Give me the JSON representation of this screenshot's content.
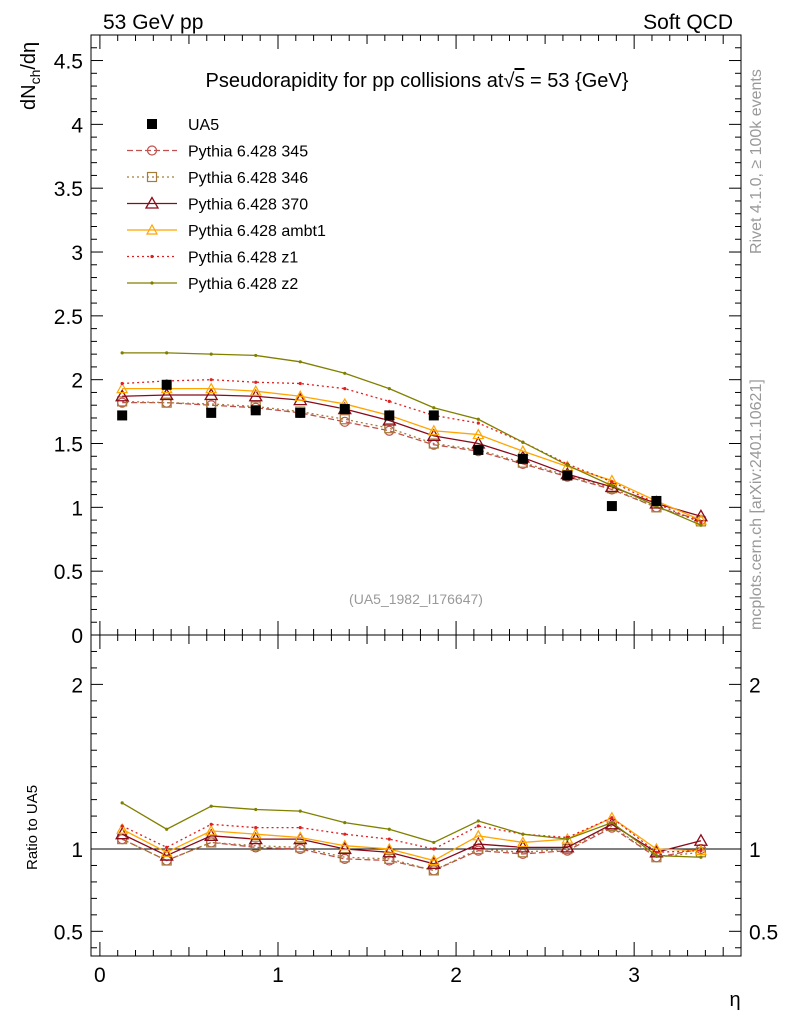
{
  "header": {
    "left": "53 GeV pp",
    "right": "Soft QCD"
  },
  "side_labels": {
    "top": "Rivet 4.1.0, ≥ 100k events",
    "bottom": "mcplots.cern.ch [arXiv:2401.10621]"
  },
  "reference_label": "(UA5_1982_I176647)",
  "chart_data": {
    "type": "line",
    "title": "Pseudorapidity for pp collisions at √s = 53 {GeV}",
    "title_prefix": "Pseudorapidity for pp collisions at",
    "title_sqrt": "s",
    "title_suffix": " = 53 {GeV}",
    "xlabel": "η",
    "ylabel": "dNch/dη",
    "ylabel_main": "dN",
    "ylabel_sub": "ch",
    "ylabel_tail": "/dη",
    "ratio_ylabel": "Ratio to UA5",
    "xlim": [
      -0.05,
      3.6
    ],
    "ylim": [
      0,
      4.7
    ],
    "ratio_ylim": [
      0.35,
      2.3
    ],
    "x_ticks": [
      "0",
      "1",
      "2",
      "3"
    ],
    "y_ticks": [
      "0",
      "0.5",
      "1",
      "1.5",
      "2",
      "2.5",
      "3",
      "3.5",
      "4",
      "4.5"
    ],
    "ratio_ticks": [
      "0.5",
      "1",
      "2"
    ],
    "x": [
      0.125,
      0.375,
      0.625,
      0.875,
      1.125,
      1.375,
      1.625,
      1.875,
      2.125,
      2.375,
      2.625,
      2.875,
      3.125,
      3.375
    ],
    "data": {
      "name": "UA5",
      "color": "#000000",
      "x": [
        0.125,
        0.375,
        0.625,
        0.875,
        1.125,
        1.375,
        1.625,
        1.875,
        2.125,
        2.375,
        2.625,
        2.875,
        3.125
      ],
      "values": [
        1.72,
        1.96,
        1.74,
        1.76,
        1.74,
        1.77,
        1.72,
        1.72,
        1.45,
        1.38,
        1.25,
        1.01,
        1.05
      ]
    },
    "series": [
      {
        "name": "Pythia 6.428 345",
        "color": "#c0504d",
        "dash": "6,3",
        "marker": "circle",
        "values": [
          1.82,
          1.82,
          1.8,
          1.78,
          1.74,
          1.67,
          1.6,
          1.49,
          1.44,
          1.34,
          1.24,
          1.14,
          1.0,
          0.9
        ],
        "ratio": [
          1.06,
          0.93,
          1.04,
          1.01,
          1.0,
          0.94,
          0.93,
          0.87,
          0.99,
          0.97,
          0.99,
          1.13,
          0.95,
          1.0
        ]
      },
      {
        "name": "Pythia 6.428 346",
        "color": "#a57d3a",
        "dash": "2,3",
        "marker": "square",
        "values": [
          1.83,
          1.82,
          1.81,
          1.79,
          1.75,
          1.69,
          1.62,
          1.5,
          1.45,
          1.35,
          1.25,
          1.15,
          1.0,
          0.89
        ],
        "ratio": [
          1.06,
          0.93,
          1.04,
          1.02,
          1.01,
          0.95,
          0.94,
          0.87,
          1.0,
          0.98,
          1.0,
          1.14,
          0.95,
          0.98
        ]
      },
      {
        "name": "Pythia 6.428 370",
        "color": "#8b0a1a",
        "dash": "",
        "marker": "triangle",
        "values": [
          1.87,
          1.88,
          1.88,
          1.87,
          1.84,
          1.77,
          1.68,
          1.56,
          1.5,
          1.39,
          1.26,
          1.16,
          1.03,
          0.93
        ],
        "ratio": [
          1.09,
          0.96,
          1.08,
          1.06,
          1.06,
          1.0,
          0.98,
          0.91,
          1.03,
          1.01,
          1.01,
          1.15,
          0.98,
          1.05
        ]
      },
      {
        "name": "Pythia 6.428 ambt1",
        "color": "#ffa500",
        "dash": "",
        "marker": "triangle-small",
        "values": [
          1.93,
          1.93,
          1.93,
          1.91,
          1.87,
          1.81,
          1.72,
          1.6,
          1.57,
          1.44,
          1.32,
          1.21,
          1.05,
          0.9
        ],
        "ratio": [
          1.12,
          0.98,
          1.11,
          1.09,
          1.07,
          1.02,
          1.0,
          0.93,
          1.08,
          1.04,
          1.06,
          1.19,
          1.0,
          0.99
        ]
      },
      {
        "name": "Pythia 6.428 z1",
        "color": "#e02020",
        "dash": "2,3",
        "marker": "dot",
        "values": [
          1.97,
          1.99,
          2.0,
          1.98,
          1.97,
          1.93,
          1.83,
          1.72,
          1.66,
          1.51,
          1.34,
          1.2,
          1.03,
          0.88
        ],
        "ratio": [
          1.14,
          1.01,
          1.15,
          1.13,
          1.13,
          1.09,
          1.06,
          1.0,
          1.14,
          1.09,
          1.07,
          1.19,
          0.98,
          0.99
        ]
      },
      {
        "name": "Pythia 6.428 z2",
        "color": "#808000",
        "dash": "",
        "marker": "dot",
        "values": [
          2.21,
          2.21,
          2.2,
          2.19,
          2.14,
          2.05,
          1.93,
          1.78,
          1.69,
          1.51,
          1.33,
          1.17,
          1.01,
          0.86
        ],
        "ratio": [
          1.28,
          1.12,
          1.26,
          1.24,
          1.23,
          1.16,
          1.12,
          1.04,
          1.17,
          1.09,
          1.06,
          1.16,
          0.96,
          0.95
        ]
      }
    ]
  }
}
